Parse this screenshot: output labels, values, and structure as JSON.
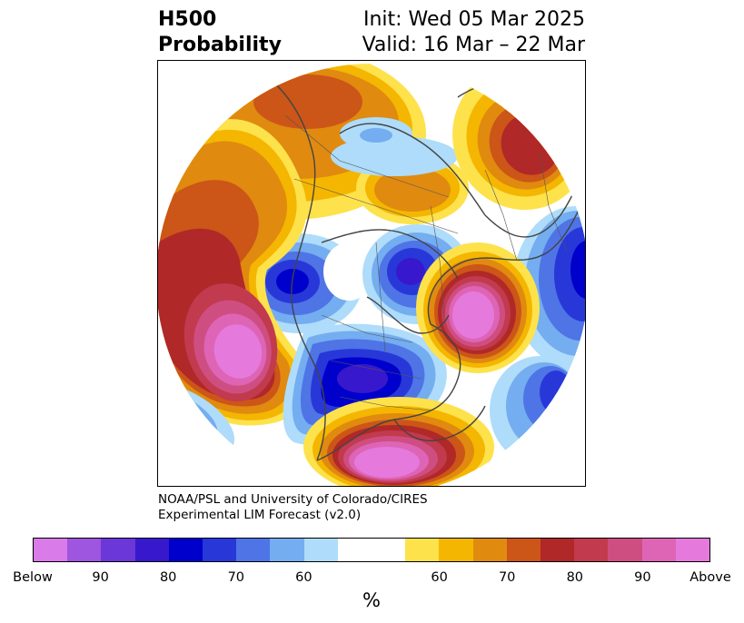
{
  "title": {
    "line1": "H500",
    "line2": "Probability",
    "init": "Init: Wed 05 Mar 2025",
    "valid": "Valid: 16 Mar – 22 Mar"
  },
  "credit": {
    "line1": "NOAA/PSL and University of Colorado/CIRES",
    "line2": "Experimental LIM Forecast (v2.0)"
  },
  "colorbar": {
    "colors": [
      "#d97be8",
      "#9e55e0",
      "#6b37d8",
      "#3818cc",
      "#0000cc",
      "#2838d8",
      "#4f74e6",
      "#74adf0",
      "#aedcfa",
      "#ffffff",
      "#ffffff",
      "#fde24c",
      "#f4b600",
      "#e08a10",
      "#cc5518",
      "#b02828",
      "#c23a4e",
      "#cf4e82",
      "#de64b6",
      "#e57adc"
    ],
    "tick_labels": [
      "Below",
      "90",
      "80",
      "70",
      "60",
      "60",
      "70",
      "80",
      "90",
      "Above"
    ],
    "unit": "%"
  },
  "map": {
    "projection": "north-polar-stereographic",
    "field": "H500 probability",
    "regions": [
      {
        "name": "above-pacific-west-coast",
        "category": "Above",
        "level": 95
      },
      {
        "name": "above-east-pacific",
        "category": "Above",
        "level": 95
      },
      {
        "name": "above-north-atlantic",
        "category": "Above",
        "level": 95
      },
      {
        "name": "above-southeast-us",
        "category": "Above",
        "level": 90
      },
      {
        "name": "above-north-pacific",
        "category": "Above",
        "level": 70
      },
      {
        "name": "above-northern-europe",
        "category": "Above",
        "level": 80
      },
      {
        "name": "above-siberia-arctic",
        "category": "Above",
        "level": 65
      },
      {
        "name": "below-central-north-america",
        "category": "Below",
        "level": 85
      },
      {
        "name": "below-east-asia",
        "category": "Below",
        "level": 80
      },
      {
        "name": "below-central-asia",
        "category": "Below",
        "level": 80
      },
      {
        "name": "below-southern-europe",
        "category": "Below",
        "level": 75
      }
    ]
  }
}
